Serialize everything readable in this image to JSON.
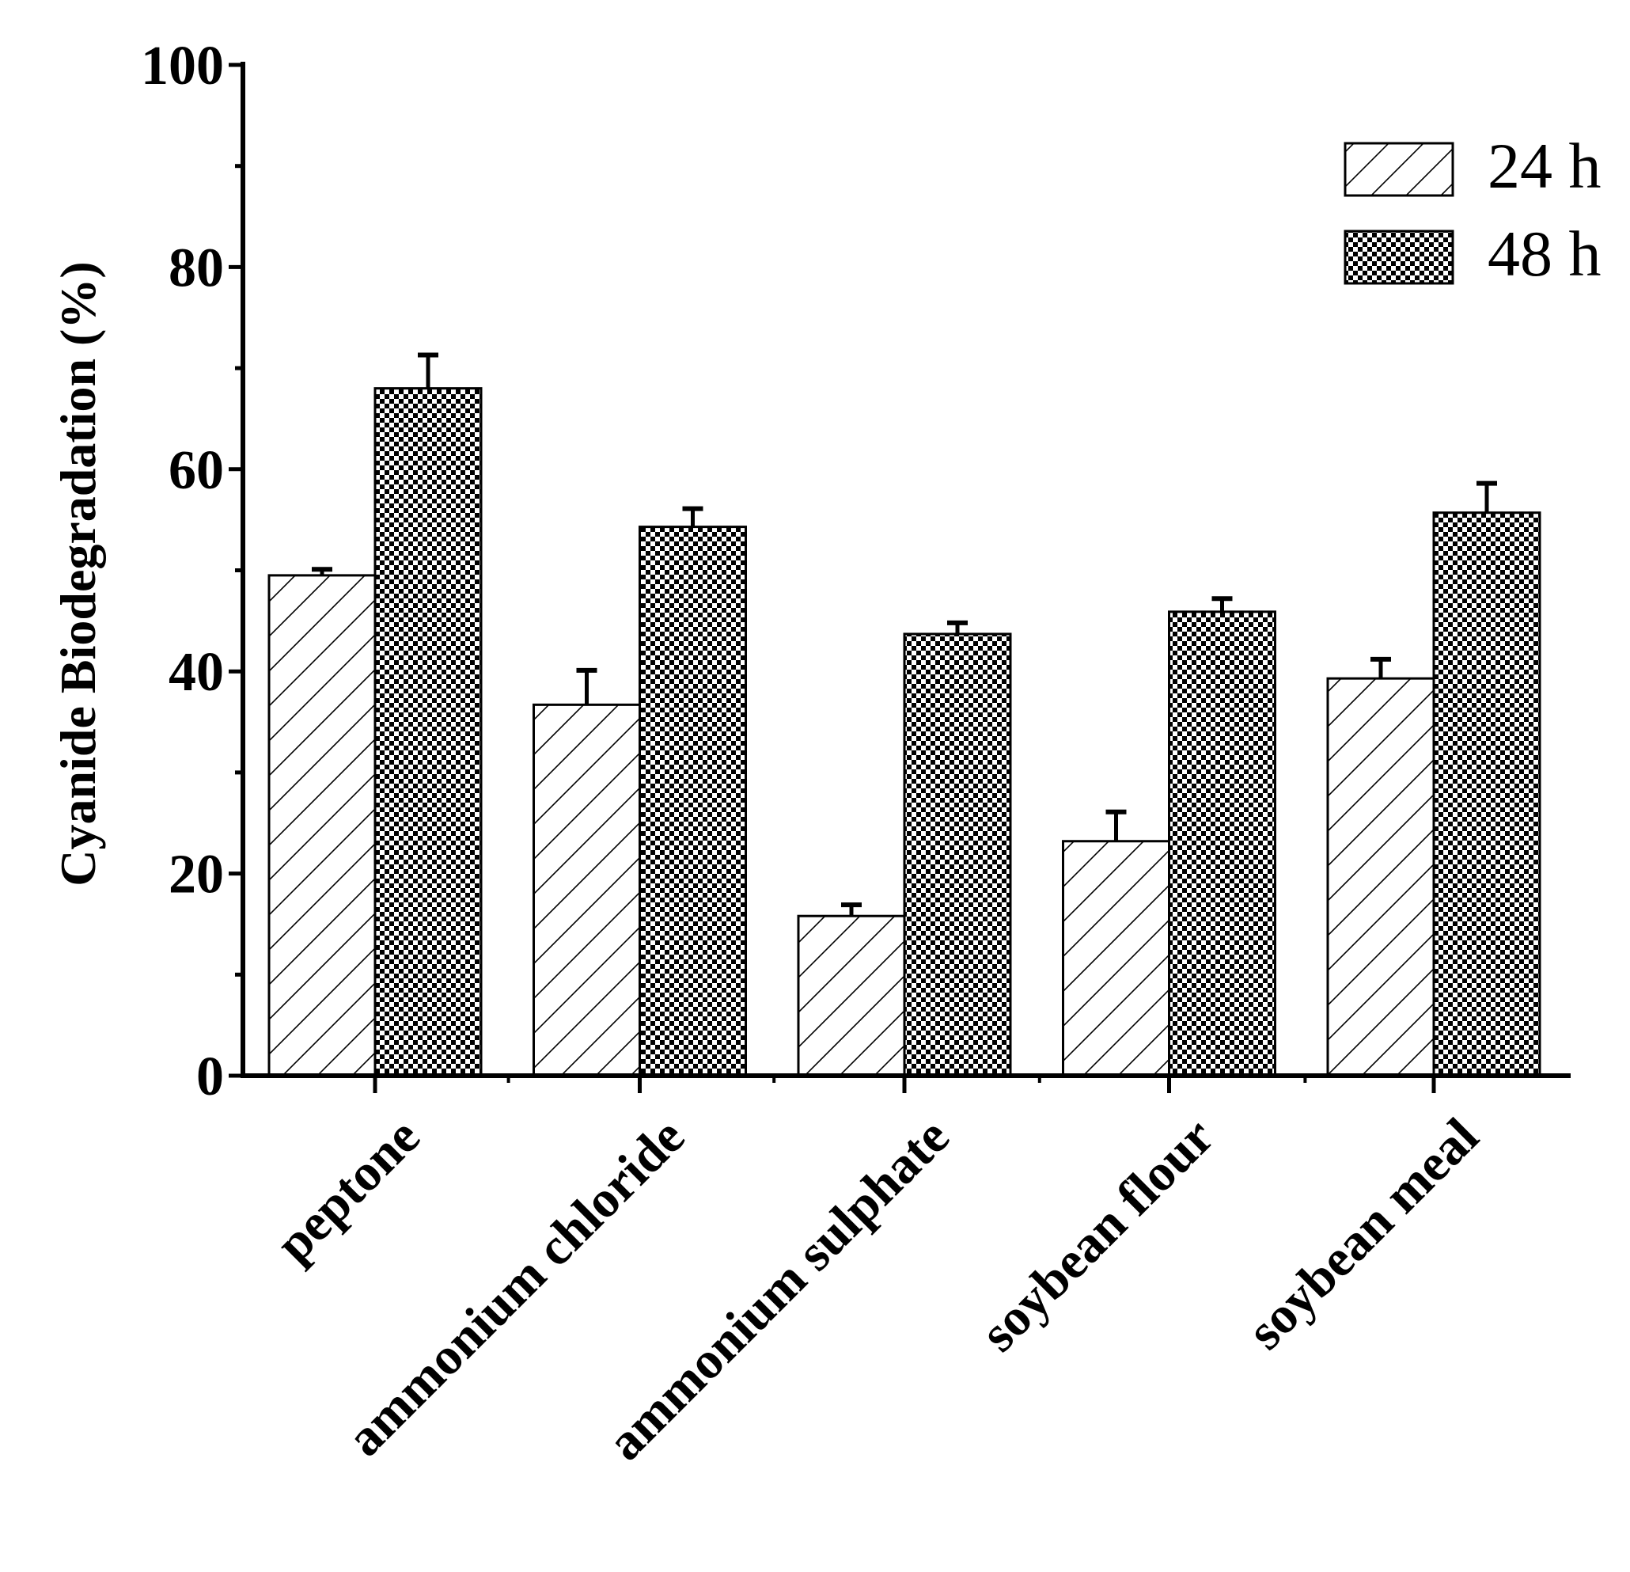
{
  "chart_data": {
    "type": "bar",
    "title": "",
    "xlabel": "",
    "ylabel": "Cyanide Biodegradation (%)",
    "ylim": [
      0,
      100
    ],
    "yticks": [
      0,
      20,
      40,
      60,
      80,
      100
    ],
    "categories": [
      "peptone",
      "ammonium chloride",
      "ammonium sulphate",
      "soybean flour",
      "soybean meal"
    ],
    "series": [
      {
        "name": "24 h",
        "pattern": "diagonal-hatch",
        "values": [
          49.5,
          36.7,
          15.8,
          23.2,
          39.3
        ],
        "errors": [
          0.6,
          3.4,
          1.1,
          2.9,
          1.9
        ]
      },
      {
        "name": "48 h",
        "pattern": "checkerboard",
        "values": [
          68.0,
          54.3,
          43.7,
          45.9,
          55.7
        ],
        "errors": [
          3.3,
          1.8,
          1.1,
          1.3,
          2.9
        ]
      }
    ],
    "legend_position": "top-right",
    "colors": {
      "ink": "#000000",
      "fill": "#ffffff"
    }
  }
}
